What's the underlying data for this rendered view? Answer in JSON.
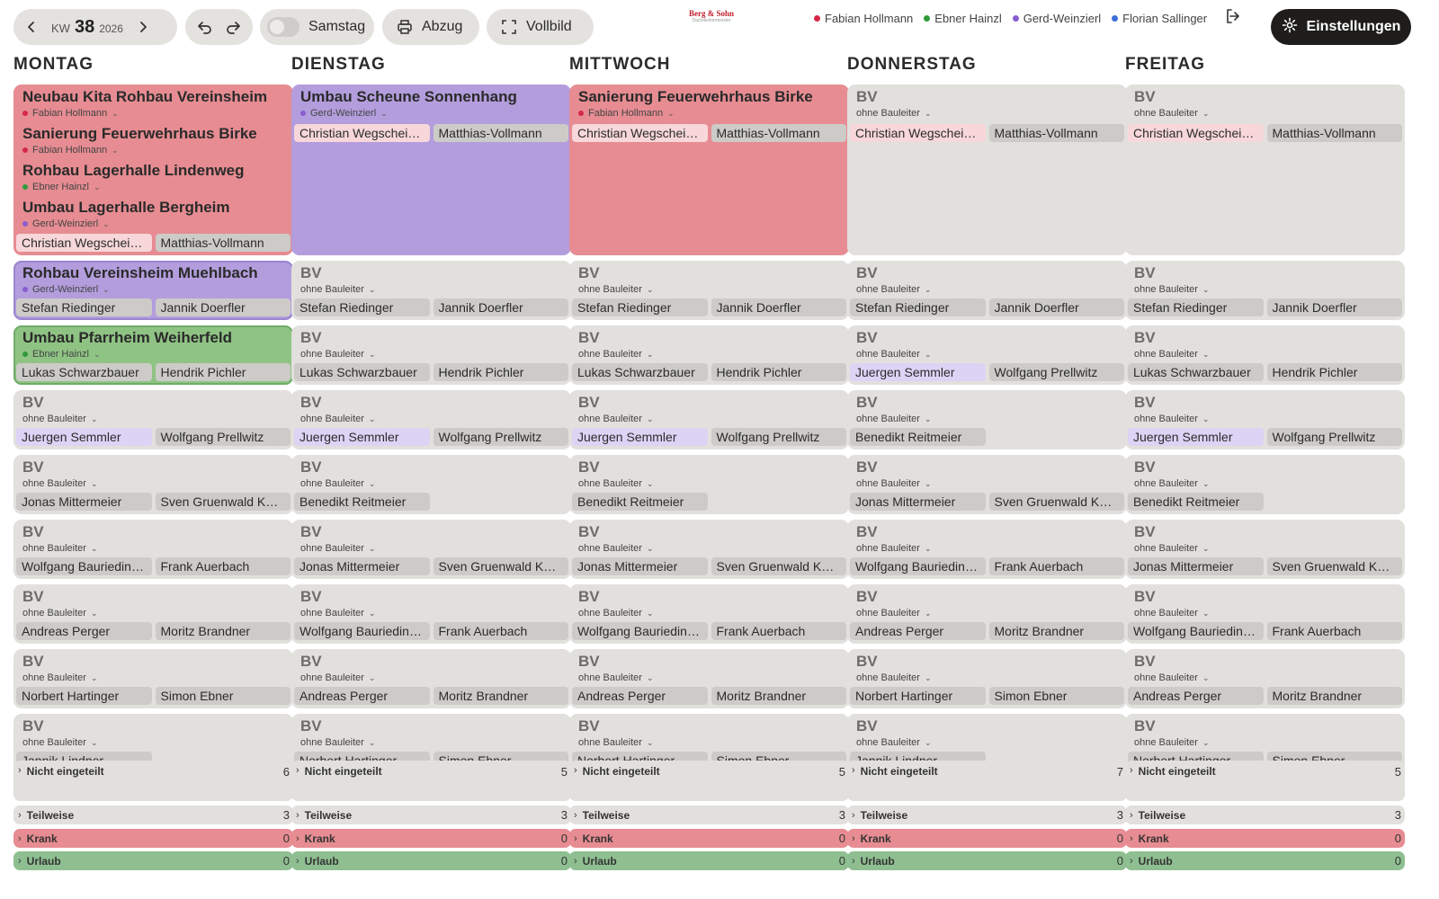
{
  "toolbar": {
    "kw_label": "KW",
    "kw_number": "38",
    "kw_year": "2026",
    "saturday_label": "Samstag",
    "print_label": "Abzug",
    "fullscreen_label": "Vollbild",
    "settings_label": "Einstellungen"
  },
  "logo": {
    "line1": "Berg & Sohn",
    "line2": "Dachdeckermeister"
  },
  "legend": [
    {
      "name": "Fabian Hollmann",
      "color": "#d6284a"
    },
    {
      "name": "Ebner Hainzl",
      "color": "#2f9a3a"
    },
    {
      "name": "Gerd-Weinzierl",
      "color": "#8a5cd0"
    },
    {
      "name": "Florian Sallinger",
      "color": "#3b6fd6"
    }
  ],
  "colors": {
    "red_card": "#e68c92",
    "purple_card": "#b39ddc",
    "green_card": "#8fc384",
    "gray_card": "#e2e0dd"
  },
  "days": [
    {
      "name": "MONTAG",
      "cards": [
        {
          "color": "red",
          "projects": [
            {
              "title": "Neubau Kita Rohbau Vereinsheim",
              "bauleiter": "Fabian Hollmann",
              "dot": "#d6284a"
            },
            {
              "title": "Sanierung Feuerwehrhaus Birke",
              "bauleiter": "Fabian Hollmann",
              "dot": "#d6284a"
            },
            {
              "title": "Rohbau Lagerhalle Lindenweg",
              "bauleiter": "Ebner Hainzl",
              "dot": "#2f9a3a"
            },
            {
              "title": "Umbau Lagerhalle Bergheim",
              "bauleiter": "Gerd-Weinzierl",
              "dot": "#8a5cd0"
            }
          ],
          "workers": [
            "Christian Wegscheider",
            "Matthias-Vollmann"
          ],
          "workerStyle": [
            "pink",
            ""
          ]
        },
        {
          "color": "purple",
          "projects": [
            {
              "title": "Rohbau Vereinsheim Muehlbach",
              "bauleiter": "Gerd-Weinzierl",
              "dot": "#8a5cd0"
            }
          ],
          "workers": [
            "Stefan Riedinger",
            "Jannik Doerfler"
          ]
        },
        {
          "color": "green",
          "projects": [
            {
              "title": "Umbau Pfarrheim Weiherfeld",
              "bauleiter": "Ebner Hainzl",
              "dot": "#2f9a3a"
            }
          ],
          "workers": [
            "Lukas Schwarzbauer",
            "Hendrik Pichler"
          ]
        },
        {
          "color": "gray",
          "workers": [
            "Juergen Semmler",
            "Wolfgang Prellwitz"
          ],
          "workerStyle": [
            "lav",
            ""
          ]
        },
        {
          "color": "gray",
          "workers": [
            "Jonas Mittermeier",
            "Sven Gruenwald Kessler"
          ]
        },
        {
          "color": "gray",
          "workers": [
            "Wolfgang Bauriedinger",
            "Frank Auerbach"
          ]
        },
        {
          "color": "gray",
          "workers": [
            "Andreas Perger",
            "Moritz Brandner"
          ]
        },
        {
          "color": "gray",
          "workers": [
            "Norbert Hartinger",
            "Simon Ebner"
          ]
        },
        {
          "color": "gray",
          "workers": [
            "Jannik Lindner",
            ""
          ]
        }
      ],
      "counts": {
        "nicht": "6",
        "teilweise": "3",
        "krank": "0",
        "urlaub": "0"
      }
    },
    {
      "name": "DIENSTAG",
      "cards": [
        {
          "color": "purple",
          "tall": true,
          "projects": [
            {
              "title": "Umbau Scheune Sonnenhang",
              "bauleiter": "Gerd-Weinzierl",
              "dot": "#8a5cd0"
            }
          ],
          "workers": [
            "Christian Wegscheider",
            "Matthias-Vollmann"
          ],
          "workerStyle": [
            "pink",
            ""
          ],
          "workersTop": true
        },
        {
          "color": "gray",
          "workers": [
            "Stefan Riedinger",
            "Jannik Doerfler"
          ]
        },
        {
          "color": "gray",
          "workers": [
            "Lukas Schwarzbauer",
            "Hendrik Pichler"
          ]
        },
        {
          "color": "gray",
          "workers": [
            "Juergen Semmler",
            "Wolfgang Prellwitz"
          ],
          "workerStyle": [
            "lav",
            ""
          ]
        },
        {
          "color": "gray",
          "workers": [
            "Benedikt Reitmeier",
            ""
          ]
        },
        {
          "color": "gray",
          "workers": [
            "Jonas Mittermeier",
            "Sven Gruenwald Kessler"
          ]
        },
        {
          "color": "gray",
          "workers": [
            "Wolfgang Bauriedinger",
            "Frank Auerbach"
          ]
        },
        {
          "color": "gray",
          "workers": [
            "Andreas Perger",
            "Moritz Brandner"
          ]
        },
        {
          "color": "gray",
          "workers": [
            "Norbert Hartinger",
            "Simon Ebner"
          ]
        }
      ],
      "counts": {
        "nicht": "5",
        "teilweise": "3",
        "krank": "0",
        "urlaub": "0"
      }
    },
    {
      "name": "MITTWOCH",
      "cards": [
        {
          "color": "red",
          "tall": true,
          "projects": [
            {
              "title": "Sanierung Feuerwehrhaus Birke",
              "bauleiter": "Fabian Hollmann",
              "dot": "#d6284a"
            }
          ],
          "workers": [
            "Christian Wegscheider",
            "Matthias-Vollmann"
          ],
          "workerStyle": [
            "pink",
            ""
          ],
          "workersTop": true
        },
        {
          "color": "gray",
          "workers": [
            "Stefan Riedinger",
            "Jannik Doerfler"
          ]
        },
        {
          "color": "gray",
          "workers": [
            "Lukas Schwarzbauer",
            "Hendrik Pichler"
          ]
        },
        {
          "color": "gray",
          "workers": [
            "Juergen Semmler",
            "Wolfgang Prellwitz"
          ],
          "workerStyle": [
            "lav",
            ""
          ]
        },
        {
          "color": "gray",
          "workers": [
            "Benedikt Reitmeier",
            ""
          ]
        },
        {
          "color": "gray",
          "workers": [
            "Jonas Mittermeier",
            "Sven Gruenwald Kessler"
          ]
        },
        {
          "color": "gray",
          "workers": [
            "Wolfgang Bauriedinger",
            "Frank Auerbach"
          ]
        },
        {
          "color": "gray",
          "workers": [
            "Andreas Perger",
            "Moritz Brandner"
          ]
        },
        {
          "color": "gray",
          "workers": [
            "Norbert Hartinger",
            "Simon Ebner"
          ]
        }
      ],
      "counts": {
        "nicht": "5",
        "teilweise": "3",
        "krank": "0",
        "urlaub": "0"
      }
    },
    {
      "name": "DONNERSTAG",
      "cards": [
        {
          "color": "gray",
          "tall": true,
          "workers": [
            "Christian Wegscheider",
            "Matthias-Vollmann"
          ],
          "workerStyle": [
            "pink",
            ""
          ],
          "workersTop": true
        },
        {
          "color": "gray",
          "workers": [
            "Stefan Riedinger",
            "Jannik Doerfler"
          ]
        },
        {
          "color": "gray",
          "workers": [
            "Juergen Semmler",
            "Wolfgang Prellwitz"
          ],
          "workerStyle": [
            "lav",
            ""
          ]
        },
        {
          "color": "gray",
          "workers": [
            "Benedikt Reitmeier",
            ""
          ]
        },
        {
          "color": "gray",
          "workers": [
            "Jonas Mittermeier",
            "Sven Gruenwald Kessler"
          ]
        },
        {
          "color": "gray",
          "workers": [
            "Wolfgang Bauriedinger",
            "Frank Auerbach"
          ]
        },
        {
          "color": "gray",
          "workers": [
            "Andreas Perger",
            "Moritz Brandner"
          ]
        },
        {
          "color": "gray",
          "workers": [
            "Norbert Hartinger",
            "Simon Ebner"
          ]
        },
        {
          "color": "gray",
          "workers": [
            "Jannik Lindner",
            ""
          ]
        }
      ],
      "counts": {
        "nicht": "7",
        "teilweise": "3",
        "krank": "0",
        "urlaub": "0"
      }
    },
    {
      "name": "FREITAG",
      "cards": [
        {
          "color": "gray",
          "tall": true,
          "workers": [
            "Christian Wegscheider",
            "Matthias-Vollmann"
          ],
          "workerStyle": [
            "pink",
            ""
          ],
          "workersTop": true
        },
        {
          "color": "gray",
          "workers": [
            "Stefan Riedinger",
            "Jannik Doerfler"
          ]
        },
        {
          "color": "gray",
          "workers": [
            "Lukas Schwarzbauer",
            "Hendrik Pichler"
          ]
        },
        {
          "color": "gray",
          "workers": [
            "Juergen Semmler",
            "Wolfgang Prellwitz"
          ],
          "workerStyle": [
            "lav",
            ""
          ]
        },
        {
          "color": "gray",
          "workers": [
            "Benedikt Reitmeier",
            ""
          ]
        },
        {
          "color": "gray",
          "workers": [
            "Jonas Mittermeier",
            "Sven Gruenwald Kessler"
          ]
        },
        {
          "color": "gray",
          "workers": [
            "Wolfgang Bauriedinger",
            "Frank Auerbach"
          ]
        },
        {
          "color": "gray",
          "workers": [
            "Andreas Perger",
            "Moritz Brandner"
          ]
        },
        {
          "color": "gray",
          "workers": [
            "Norbert Hartinger",
            "Simon Ebner"
          ]
        }
      ],
      "counts": {
        "nicht": "5",
        "teilweise": "3",
        "krank": "0",
        "urlaub": "0"
      }
    }
  ],
  "placeholder": {
    "title": "BV",
    "bauleiter": "ohne Bauleiter"
  },
  "footer_labels": {
    "nicht": "Nicht eingeteilt",
    "teilweise": "Teilweise",
    "krank": "Krank",
    "urlaub": "Urlaub"
  }
}
